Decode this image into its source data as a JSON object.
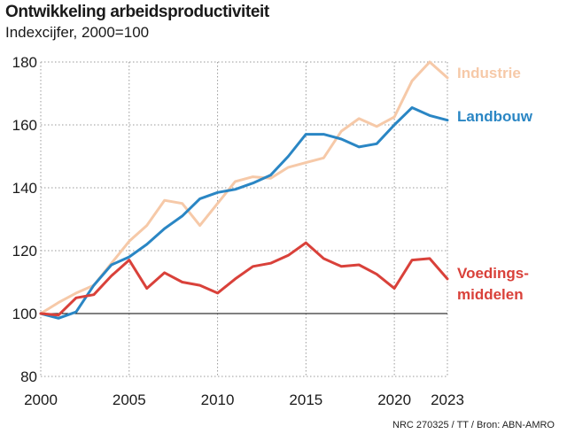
{
  "header": {
    "title": "Ontwikkeling arbeidsproductiviteit",
    "subtitle": "Indexcijfer, 2000=100"
  },
  "footer": {
    "source": "NRC 270325 / TT / Bron: ABN-AMRO"
  },
  "chart_data": {
    "type": "line",
    "title": "Ontwikkeling arbeidsproductiviteit",
    "subtitle": "Indexcijfer, 2000=100",
    "xlabel": "",
    "ylabel": "",
    "xlim": [
      2000,
      2023
    ],
    "ylim": [
      80,
      180
    ],
    "x_ticks": [
      2000,
      2005,
      2010,
      2015,
      2020,
      2023
    ],
    "y_ticks": [
      80,
      100,
      120,
      140,
      160,
      180
    ],
    "reference_line": 100,
    "grid": "dotted vertical and horizontal",
    "legend": "direct labels at line ends (right)",
    "x": [
      2000,
      2001,
      2002,
      2003,
      2004,
      2005,
      2006,
      2007,
      2008,
      2009,
      2010,
      2011,
      2012,
      2013,
      2014,
      2015,
      2016,
      2017,
      2018,
      2019,
      2020,
      2021,
      2022,
      2023
    ],
    "series": [
      {
        "name": "Industrie",
        "label_lines": [
          "Industrie"
        ],
        "color": "#f6c9a8",
        "values": [
          100,
          103.5,
          106.5,
          109,
          116,
          123,
          128,
          136,
          135,
          128,
          135,
          142,
          143.5,
          143,
          146.5,
          148,
          149.5,
          158,
          162,
          159.5,
          162.5,
          174,
          180,
          175
        ]
      },
      {
        "name": "Landbouw",
        "label_lines": [
          "Landbouw"
        ],
        "color": "#2a86c4",
        "values": [
          100,
          98.5,
          100.5,
          109,
          115.5,
          118,
          122,
          127,
          131,
          136.5,
          138.5,
          139.5,
          141.5,
          144,
          150,
          157,
          157,
          155.5,
          153,
          154,
          160,
          165.5,
          163,
          161.5
        ]
      },
      {
        "name": "Voedings-middelen",
        "label_lines": [
          "Voedings-",
          "middelen"
        ],
        "color": "#d9413a",
        "values": [
          100,
          99.5,
          105,
          106,
          112,
          117,
          108,
          113,
          110,
          109,
          106.5,
          111,
          115,
          116,
          118.5,
          122.5,
          117.5,
          115,
          115.5,
          112.5,
          108,
          117,
          117.5,
          111
        ]
      }
    ]
  }
}
